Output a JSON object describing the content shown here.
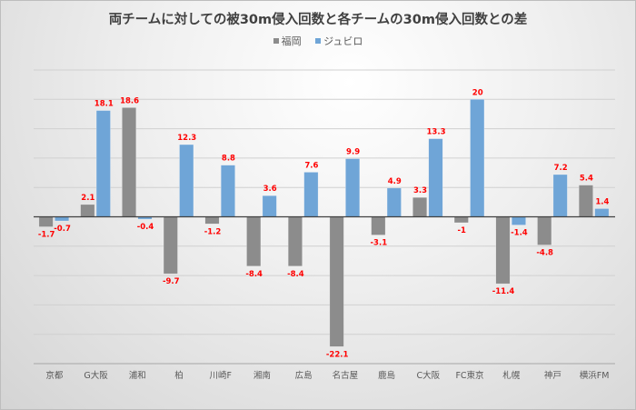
{
  "chart_data": {
    "type": "bar",
    "title": "両チームに対しての被30m侵入回数と各チームの30m侵入回数との差",
    "xlabel": "",
    "ylabel": "",
    "ylim": [
      -25,
      25
    ],
    "grid_step": 5,
    "grid": true,
    "legend_position": "top",
    "categories": [
      "京都",
      "G大阪",
      "浦和",
      "柏",
      "川崎F",
      "湘南",
      "広島",
      "名古屋",
      "鹿島",
      "C大阪",
      "FC東京",
      "札幌",
      "神戸",
      "横浜FM"
    ],
    "series": [
      {
        "name": "福岡",
        "color": "#8c8c8c",
        "values": [
          -1.7,
          2.1,
          18.6,
          -9.7,
          -1.2,
          -8.4,
          -8.4,
          -22.1,
          -3.1,
          3.3,
          -1,
          -11.4,
          -4.8,
          5.4
        ]
      },
      {
        "name": "ジュビロ",
        "color": "#6fa5d7",
        "values": [
          -0.7,
          18.1,
          -0.4,
          12.3,
          8.8,
          3.6,
          7.6,
          9.9,
          4.9,
          13.3,
          20,
          -1.4,
          7.2,
          1.4
        ]
      }
    ],
    "data_label_color": "#ff0000"
  }
}
